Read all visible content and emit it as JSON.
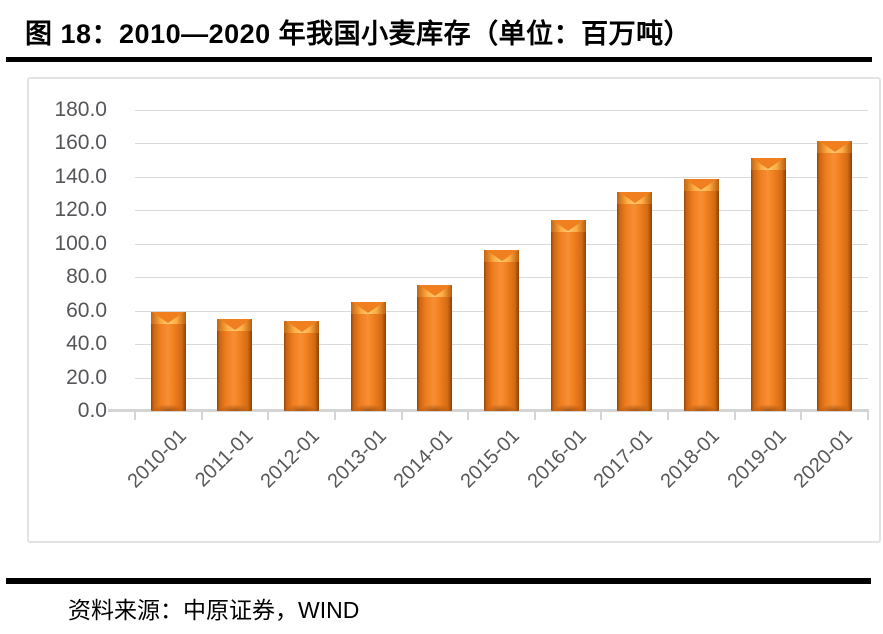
{
  "header": {
    "title": "图 18：2010—2020 年我国小麦库存（单位：百万吨）"
  },
  "footer": {
    "source": "资料来源：中原证券，WIND"
  },
  "colors": {
    "bar_main": "#ED7D31",
    "bar_edge_dark": "#8F4606",
    "bar_cap_highlight": "#FFC873",
    "gridline": "#DADADA",
    "axis_line": "#D4D4D4",
    "axis_label": "#595959",
    "frame_border": "#E3E3E3",
    "divider": "#000000"
  },
  "chart_data": {
    "type": "bar",
    "title": "图 18：2010—2020 年我国小麦库存（单位：百万吨）",
    "unit": "百万吨",
    "categories": [
      "2010-01",
      "2011-01",
      "2012-01",
      "2013-01",
      "2014-01",
      "2015-01",
      "2016-01",
      "2017-01",
      "2018-01",
      "2019-01",
      "2020-01"
    ],
    "values": [
      59,
      55,
      54,
      65,
      75.5,
      96,
      114,
      131,
      139,
      151.5,
      161.5
    ],
    "xlabel": "",
    "ylabel": "",
    "ylim": [
      0,
      180
    ],
    "ytick_step": 20,
    "ytick_labels": [
      "0.0",
      "20.0",
      "40.0",
      "60.0",
      "80.0",
      "100.0",
      "120.0",
      "140.0",
      "160.0",
      "180.0"
    ],
    "grid": true,
    "legend": false,
    "bar_style": "3d-bevel-orange"
  }
}
